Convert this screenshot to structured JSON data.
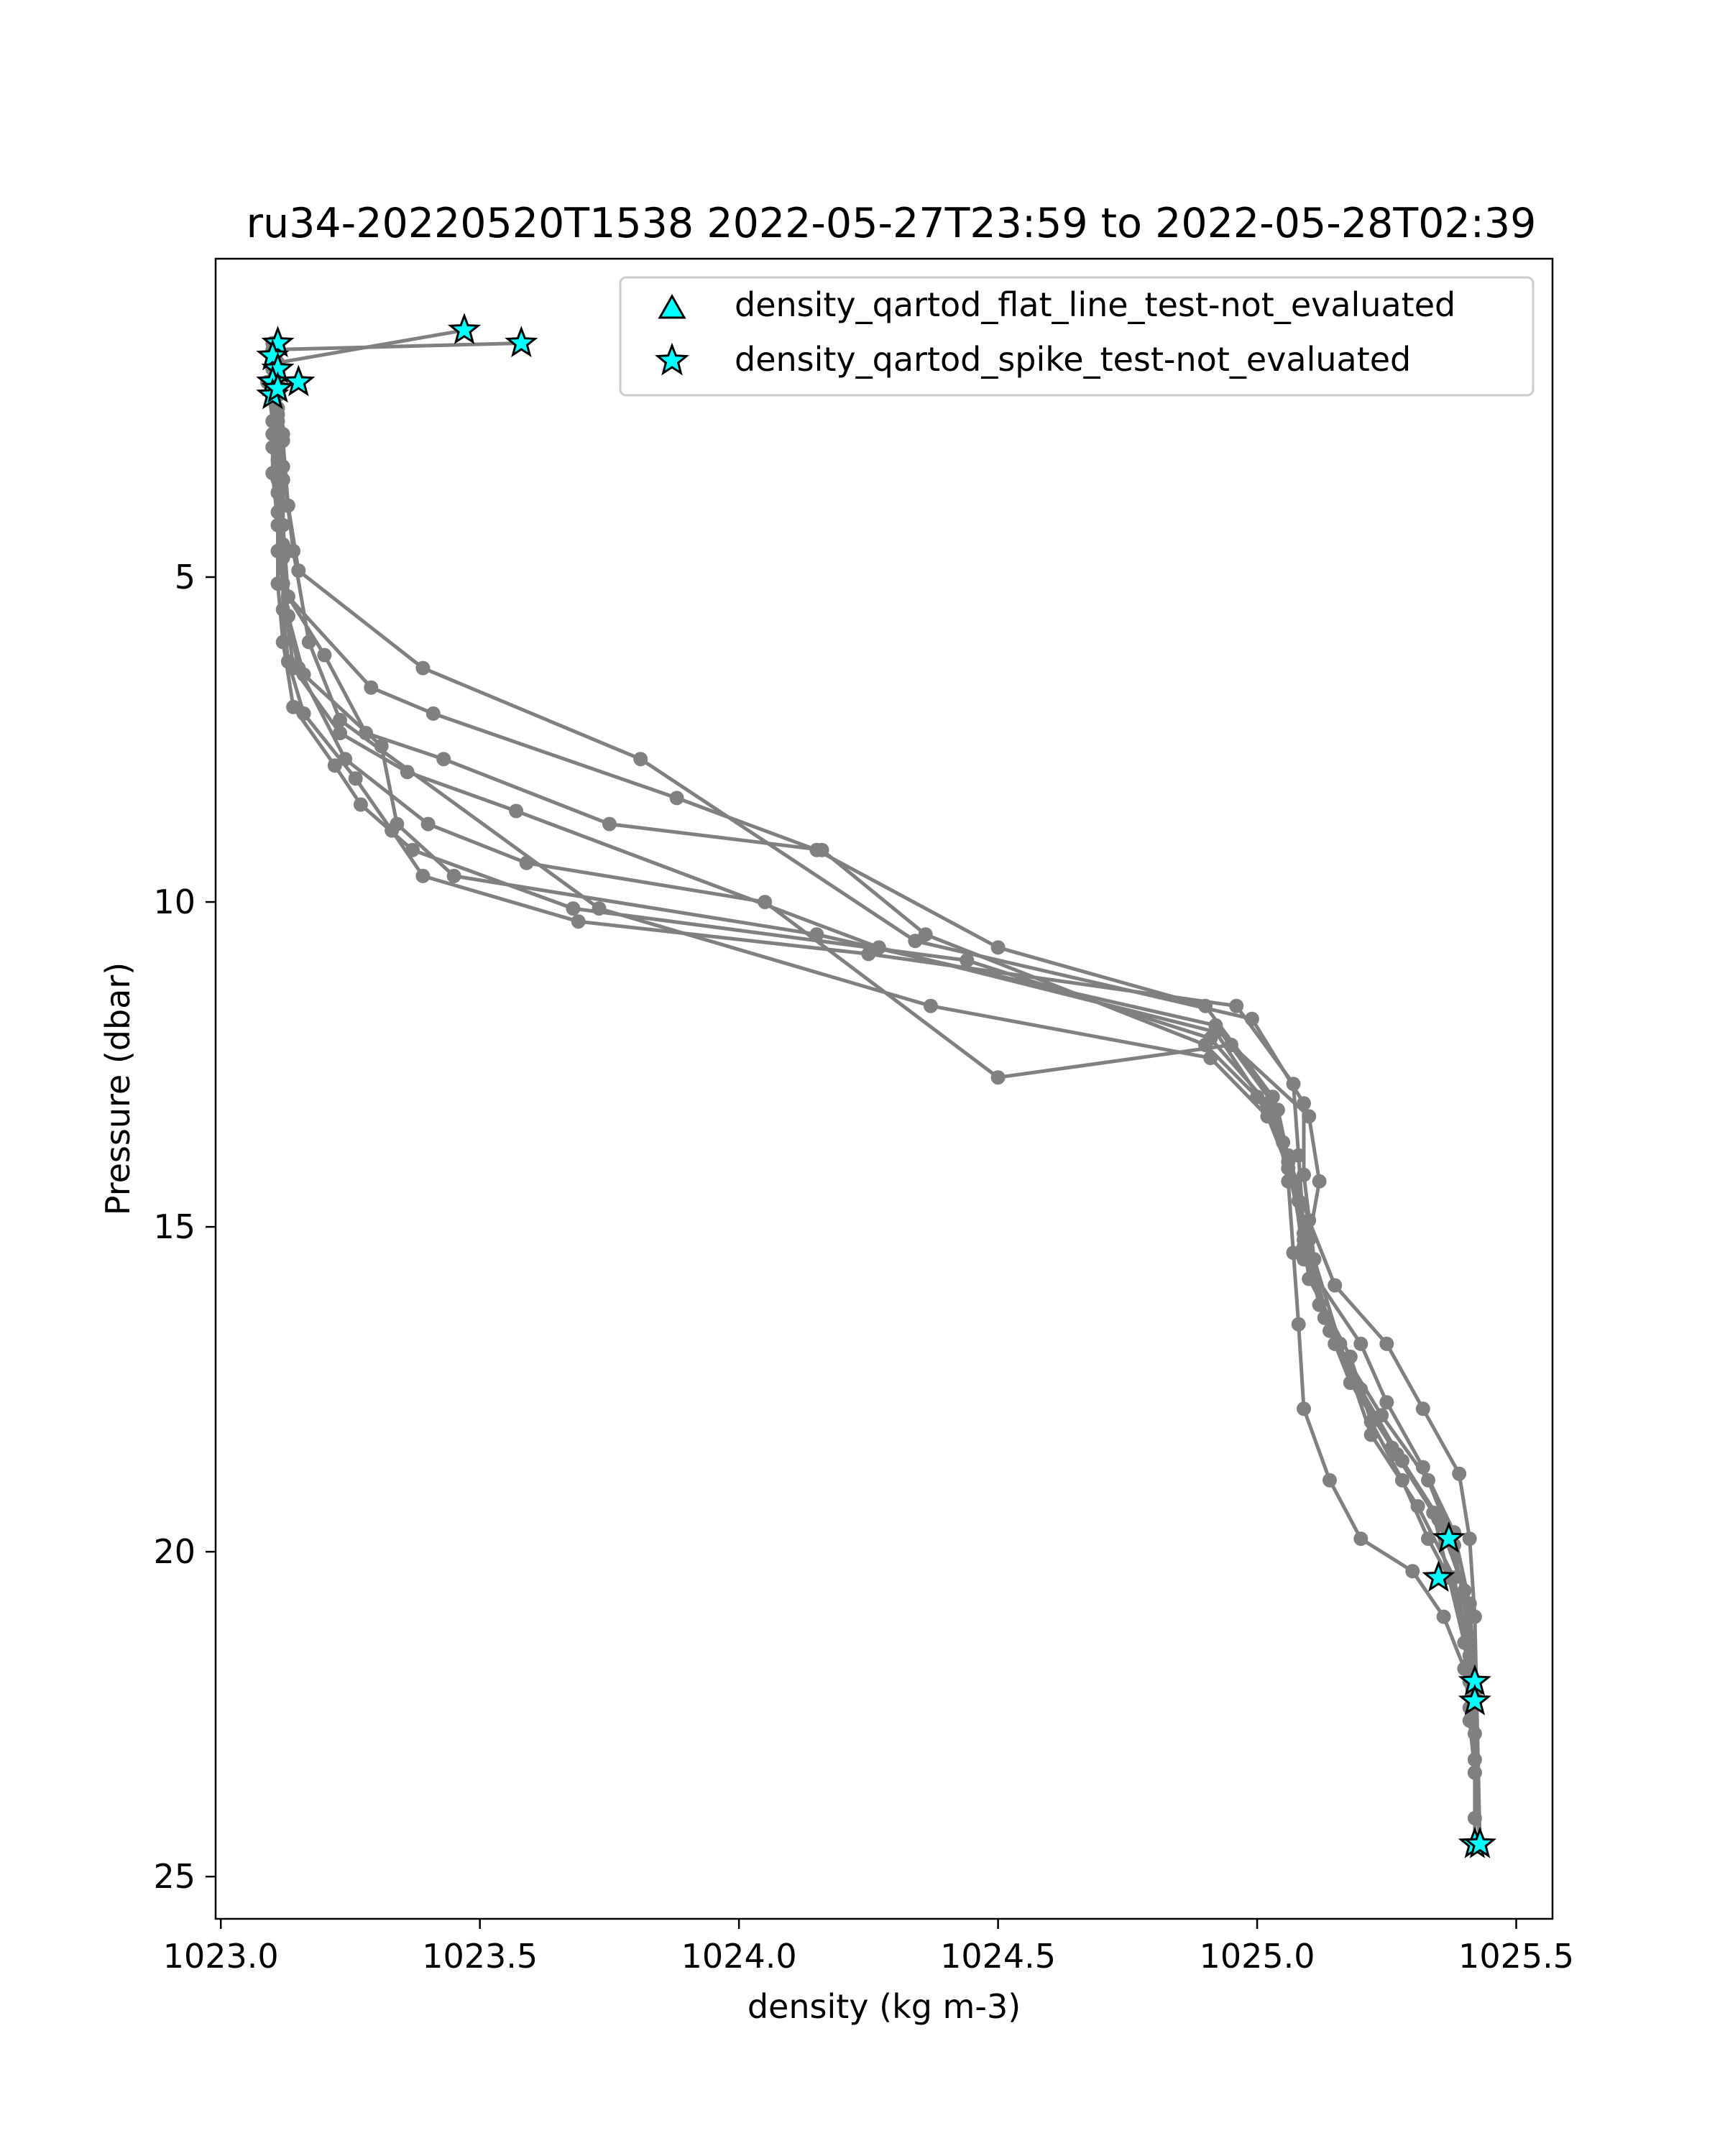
{
  "chart_data": {
    "type": "line",
    "title": "ru34-20220520T1538 2022-05-27T23:59 to 2022-05-28T02:39",
    "xlabel": "density (kg m-3)",
    "ylabel": "Pressure (dbar)",
    "xlim": [
      1022.99,
      1025.57
    ],
    "ylim": [
      25.65,
      0.1
    ],
    "y_inverted": true,
    "x_ticks": [
      1023.0,
      1023.5,
      1024.0,
      1024.5,
      1025.0,
      1025.5
    ],
    "x_tick_labels": [
      "1023.0",
      "1023.5",
      "1024.0",
      "1024.5",
      "1025.0",
      "1025.5"
    ],
    "y_ticks": [
      5,
      10,
      15,
      20,
      25
    ],
    "y_tick_labels": [
      "5",
      "10",
      "15",
      "20",
      "25"
    ],
    "grid": false,
    "legend_position": "top-right",
    "line_color": "#808080",
    "marker_color": "#00ffff",
    "legend": [
      {
        "label": "density_qartod_flat_line_test-not_evaluated",
        "marker": "triangle"
      },
      {
        "label": "density_qartod_spike_test-not_evaluated",
        "marker": "star"
      }
    ],
    "series": [
      {
        "x": [
          1023.47,
          1023.11,
          1023.11,
          1023.12,
          1023.11,
          1023.12,
          1023.12,
          1023.13,
          1023.16,
          1023.26,
          1023.33,
          1023.39,
          1023.69,
          1024.25,
          1024.96,
          1025.07,
          1025.08,
          1025.09,
          1025.15,
          1025.26,
          1025.34,
          1025.37,
          1025.4,
          1025.41,
          1025.41,
          1025.42,
          1025.42,
          1025.42
        ],
        "y": [
          1.2,
          1.7,
          2.2,
          2.8,
          3.5,
          4.5,
          5.5,
          6.3,
          7.1,
          8.1,
          8.9,
          9.6,
          10.3,
          10.8,
          11.6,
          12.8,
          13.9,
          15.1,
          16.8,
          18.4,
          19.4,
          20.4,
          21.4,
          22.0,
          22.6,
          23.4,
          24.1,
          24.5
        ]
      },
      {
        "x": [
          1023.58,
          1023.1,
          1023.11,
          1023.11,
          1023.12,
          1023.12,
          1023.13,
          1023.2,
          1023.28,
          1023.43,
          1023.75,
          1024.16,
          1024.36,
          1024.9,
          1025.0,
          1025.05,
          1025.08,
          1025.1,
          1025.18,
          1025.22,
          1025.28,
          1025.33,
          1025.39,
          1025.41,
          1025.42,
          1025.42,
          1025.43
        ],
        "y": [
          1.4,
          1.5,
          1.9,
          2.6,
          3.5,
          4.5,
          5.3,
          6.2,
          7.4,
          7.8,
          8.8,
          9.2,
          10.5,
          12.2,
          13.0,
          13.7,
          14.6,
          15.8,
          17.0,
          18.0,
          18.9,
          19.8,
          20.7,
          21.6,
          22.3,
          23.2,
          24.5
        ]
      },
      {
        "x": [
          1023.1,
          1023.11,
          1023.11,
          1023.12,
          1023.12,
          1023.13,
          1023.15,
          1023.24,
          1023.4,
          1023.59,
          1024.05,
          1024.5,
          1024.95,
          1025.1,
          1025.12,
          1025.1,
          1025.13,
          1025.2,
          1025.28,
          1025.36,
          1025.41,
          1025.42,
          1025.43
        ],
        "y": [
          1.4,
          2.0,
          2.7,
          3.5,
          4.7,
          5.6,
          6.4,
          7.8,
          8.8,
          9.4,
          10.0,
          12.7,
          12.2,
          13.3,
          14.3,
          15.2,
          16.4,
          17.5,
          18.6,
          19.6,
          20.8,
          22.0,
          24.5
        ]
      },
      {
        "x": [
          1023.1,
          1023.1,
          1023.11,
          1023.11,
          1023.12,
          1023.13,
          1023.29,
          1023.41,
          1023.88,
          1024.15,
          1024.5,
          1024.9,
          1025.03,
          1025.06,
          1025.07,
          1025.08,
          1025.09,
          1025.14,
          1025.2,
          1025.3,
          1025.36,
          1025.4,
          1025.41,
          1025.42,
          1025.43
        ],
        "y": [
          1.6,
          1.8,
          2.4,
          3.2,
          4.2,
          5.3,
          6.7,
          7.1,
          8.4,
          9.2,
          10.7,
          11.6,
          13.0,
          14.3,
          15.4,
          16.5,
          17.8,
          18.9,
          19.8,
          20.3,
          21.0,
          21.8,
          22.4,
          23.4,
          24.5
        ]
      },
      {
        "x": [
          1023.09,
          1023.1,
          1023.1,
          1023.11,
          1023.11,
          1023.12,
          1023.14,
          1023.22,
          1023.27,
          1023.37,
          1023.68,
          1024.44,
          1024.91,
          1025.02,
          1025.06,
          1025.1,
          1025.15,
          1025.25,
          1025.32,
          1025.39,
          1025.41,
          1025.42,
          1025.43
        ],
        "y": [
          2.0,
          2.6,
          3.4,
          4.2,
          5.1,
          6.0,
          7.0,
          7.9,
          8.5,
          9.2,
          10.1,
          10.9,
          12.1,
          13.1,
          13.9,
          14.9,
          15.9,
          16.8,
          17.8,
          18.8,
          19.8,
          21.0,
          24.5
        ]
      },
      {
        "x": [
          1023.1,
          1023.1,
          1023.11,
          1023.11,
          1023.13,
          1023.16,
          1023.31,
          1023.34,
          1023.45,
          1024.15,
          1024.92,
          1025.04,
          1025.07,
          1025.09,
          1025.2,
          1025.25,
          1025.32,
          1025.38,
          1025.41,
          1025.42,
          1025.43
        ],
        "y": [
          2.0,
          2.8,
          3.7,
          4.6,
          5.6,
          6.5,
          7.6,
          8.8,
          9.6,
          10.5,
          11.9,
          13.2,
          14.3,
          15.5,
          16.8,
          17.7,
          18.7,
          19.7,
          20.8,
          22.2,
          24.5
        ]
      },
      {
        "x": [
          1023.1,
          1023.1,
          1023.11,
          1023.12,
          1023.14,
          1023.23,
          1023.36,
          1023.57,
          1024.27,
          1024.92,
          1025.02,
          1025.06,
          1025.09,
          1025.14,
          1025.24,
          1025.33,
          1025.38,
          1025.41,
          1025.42,
          1025.43
        ],
        "y": [
          2.2,
          3.0,
          4.0,
          5.1,
          6.4,
          7.4,
          8.0,
          8.6,
          10.7,
          12.0,
          13.2,
          14.0,
          15.3,
          16.6,
          17.9,
          18.9,
          19.9,
          21.3,
          22.3,
          24.5
        ]
      },
      {
        "x": [
          1023.11,
          1023.12,
          1023.13,
          1023.15,
          1023.39,
          1023.81,
          1024.34,
          1024.99,
          1025.09,
          1025.09,
          1025.11,
          1025.16,
          1025.22,
          1025.31,
          1025.38,
          1025.41,
          1025.42,
          1025.43
        ],
        "y": [
          2.1,
          2.9,
          3.9,
          4.9,
          6.4,
          7.8,
          10.6,
          11.8,
          13.1,
          14.2,
          15.5,
          16.8,
          18.2,
          19.3,
          20.4,
          21.7,
          22.8,
          24.5
        ]
      },
      {
        "x": [
          1023.11,
          1023.12,
          1023.14,
          1023.17,
          1023.23,
          1023.73,
          1024.37,
          1024.91,
          1025.02,
          1025.06,
          1025.09,
          1025.12,
          1025.18,
          1025.27,
          1025.35,
          1025.4,
          1025.42
        ],
        "y": [
          2.5,
          3.3,
          4.6,
          6.0,
          7.2,
          10.1,
          11.6,
          12.4,
          13.3,
          14.1,
          15.2,
          16.2,
          17.4,
          18.5,
          19.5,
          20.6,
          22.1
        ]
      }
    ],
    "spike_markers": {
      "x": [
        1023.47,
        1023.58,
        1023.11,
        1023.1,
        1023.11,
        1023.1,
        1023.15,
        1023.1,
        1023.11,
        1025.37,
        1025.35,
        1025.42,
        1025.42,
        1025.42,
        1025.43
      ],
      "y": [
        1.2,
        1.4,
        1.4,
        1.6,
        1.8,
        2.0,
        2.0,
        2.2,
        2.1,
        19.8,
        20.4,
        22.0,
        22.3,
        24.5,
        24.5
      ]
    }
  }
}
